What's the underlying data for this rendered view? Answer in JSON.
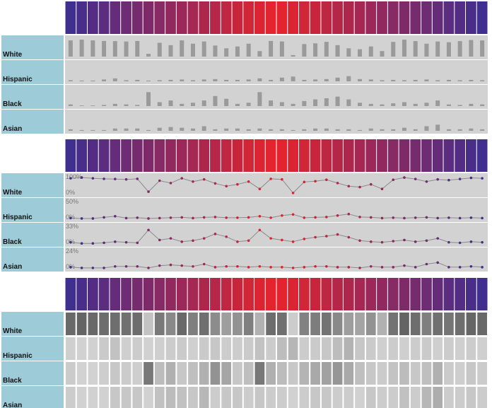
{
  "chart_data": {
    "type": "demographic-panels",
    "header_colors": {
      "edge": "#3b2f91",
      "center": "#e8232a"
    },
    "bar_color": "#9a9a9a",
    "line_color": "#8a8a8a",
    "heat_colors": {
      "low": "#d6d6d6",
      "high": "#5a5a5a"
    },
    "rows": [
      {
        "name": "White",
        "axis": [
          {
            "value": 100,
            "label": "100%"
          },
          {
            "value": 0,
            "label": "0%"
          }
        ],
        "values": [
          88,
          92,
          88,
          85,
          84,
          82,
          85,
          15,
          75,
          62,
          88,
          70,
          82,
          60,
          45,
          55,
          70,
          30,
          85,
          82,
          8,
          68,
          72,
          80,
          62,
          45,
          40,
          55,
          30,
          80,
          92,
          84,
          70,
          82,
          78,
          84,
          90,
          88
        ]
      },
      {
        "name": "Hispanic",
        "axis": [
          {
            "value": 50,
            "label": "50%"
          },
          {
            "value": 0,
            "label": "0%"
          }
        ],
        "values": [
          3,
          2,
          2,
          5,
          8,
          3,
          4,
          2,
          3,
          4,
          5,
          3,
          5,
          6,
          4,
          4,
          5,
          8,
          4,
          10,
          13,
          4,
          5,
          6,
          10,
          14,
          6,
          5,
          3,
          4,
          3,
          4,
          5,
          3,
          4,
          3,
          4,
          3
        ]
      },
      {
        "name": "Black",
        "axis": [
          {
            "value": 33,
            "label": "33%"
          },
          {
            "value": 0,
            "label": "0%"
          }
        ],
        "values": [
          3,
          1,
          1,
          2,
          4,
          3,
          2,
          25,
          7,
          10,
          4,
          6,
          10,
          18,
          13,
          4,
          6,
          25,
          10,
          7,
          4,
          9,
          12,
          14,
          17,
          12,
          6,
          4,
          3,
          5,
          7,
          4,
          6,
          10,
          3,
          2,
          4,
          3
        ]
      },
      {
        "name": "Asian",
        "axis": [
          {
            "value": 24,
            "label": "24%"
          },
          {
            "value": 0,
            "label": "0%"
          }
        ],
        "values": [
          2,
          1,
          1,
          1,
          3,
          3,
          3,
          1,
          4,
          5,
          4,
          3,
          6,
          2,
          3,
          3,
          2,
          3,
          2,
          2,
          1,
          2,
          3,
          3,
          2,
          2,
          1,
          3,
          2,
          2,
          4,
          2,
          6,
          8,
          2,
          2,
          3,
          2
        ]
      }
    ]
  }
}
